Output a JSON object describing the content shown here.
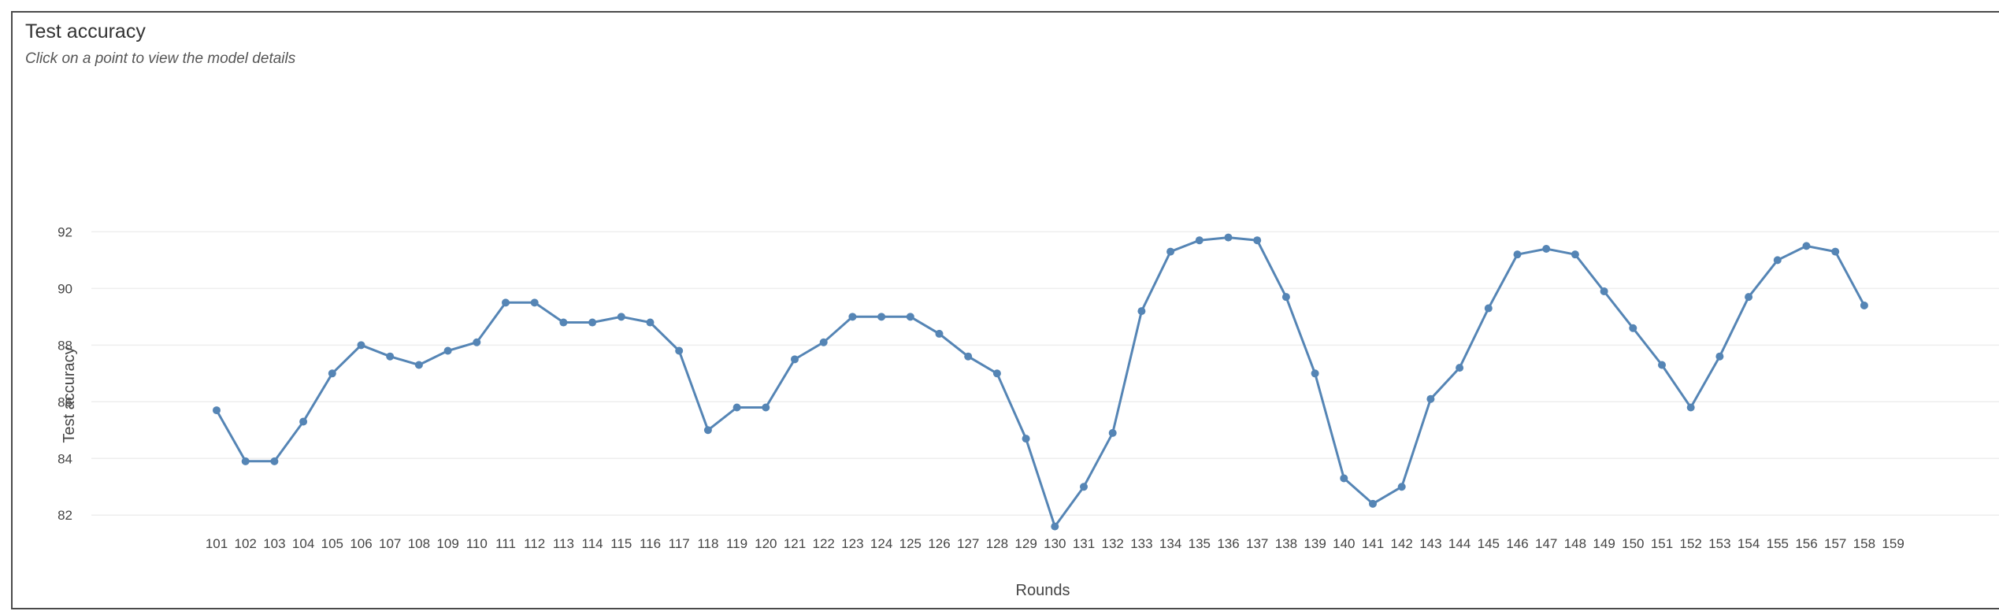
{
  "header": {
    "title": "Test accuracy",
    "subtitle": "Click on a point to view the model details"
  },
  "chart_data": {
    "type": "line",
    "title": "Test accuracy",
    "subtitle": "Click on a point to view the model details",
    "xlabel": "Rounds",
    "ylabel": "Test accuracy",
    "ylim": [
      81.2,
      92.4
    ],
    "yticks": [
      82,
      84,
      86,
      88,
      90,
      92
    ],
    "grid": true,
    "legend": "none",
    "color": "#5585b5",
    "x": [
      101,
      102,
      103,
      104,
      105,
      106,
      107,
      108,
      109,
      110,
      111,
      112,
      113,
      114,
      115,
      116,
      117,
      118,
      119,
      120,
      121,
      122,
      123,
      124,
      125,
      126,
      127,
      128,
      129,
      130,
      131,
      132,
      133,
      134,
      135,
      136,
      137,
      138,
      139,
      140,
      141,
      142,
      143,
      144,
      145,
      146,
      147,
      148,
      149,
      150,
      151,
      152,
      153,
      154,
      155,
      156,
      157,
      158,
      159
    ],
    "values": [
      85.7,
      83.9,
      83.9,
      85.3,
      87.0,
      88.0,
      87.6,
      87.3,
      87.8,
      88.1,
      89.5,
      89.5,
      88.8,
      88.8,
      89.0,
      88.8,
      87.8,
      85.0,
      85.8,
      85.8,
      87.5,
      88.1,
      89.0,
      89.0,
      89.0,
      88.4,
      87.6,
      87.0,
      84.7,
      81.6,
      83.0,
      84.9,
      89.2,
      91.3,
      91.7,
      91.8,
      91.7,
      89.7,
      87.0,
      83.3,
      82.4,
      83.0,
      86.1,
      87.2,
      89.3,
      91.2,
      91.4,
      91.2,
      89.9,
      88.6,
      87.3,
      85.8,
      87.6,
      89.7,
      91.0,
      91.5,
      91.3,
      89.4,
      null
    ]
  }
}
